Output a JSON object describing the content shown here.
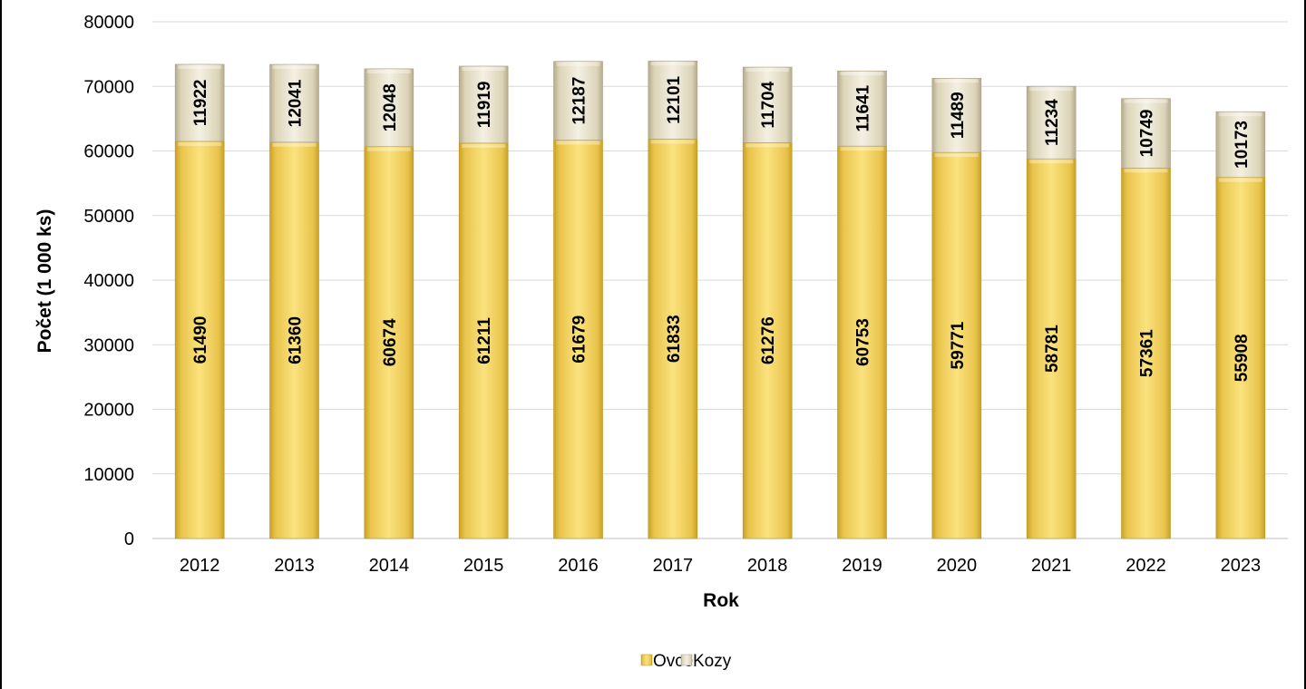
{
  "chart_data": {
    "type": "bar",
    "stacked": true,
    "categories": [
      "2012",
      "2013",
      "2014",
      "2015",
      "2016",
      "2017",
      "2018",
      "2019",
      "2020",
      "2021",
      "2022",
      "2023"
    ],
    "series": [
      {
        "name": "Ovce",
        "color": "#F2D35E",
        "values": [
          61490,
          61360,
          60674,
          61211,
          61679,
          61833,
          61276,
          60753,
          59771,
          58781,
          57361,
          55908
        ]
      },
      {
        "name": "Kozy",
        "color": "#E6DFC6",
        "values": [
          11922,
          12041,
          12048,
          11919,
          12187,
          12101,
          11704,
          11641,
          11489,
          11234,
          10749,
          10173
        ]
      }
    ],
    "title": "",
    "xlabel": "Rok",
    "ylabel": "Počet (1 000 ks)",
    "ylim": [
      0,
      80000
    ],
    "yticks": [
      0,
      10000,
      20000,
      30000,
      40000,
      50000,
      60000,
      70000,
      80000
    ],
    "grid": true,
    "legend_position": "bottom",
    "data_labels": true
  }
}
